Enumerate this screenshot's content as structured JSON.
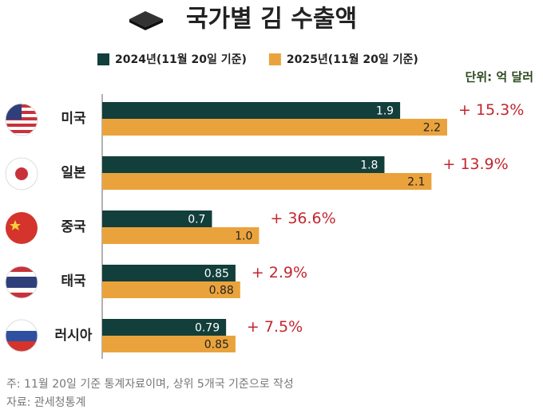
{
  "chart_data": {
    "type": "bar",
    "orientation": "horizontal",
    "title": "국가별 김 수출액",
    "unit_label": "단위: 억 달러",
    "categories": [
      "미국",
      "일본",
      "중국",
      "태국",
      "러시아"
    ],
    "series": [
      {
        "name": "2024년(11월 20일 기준)",
        "color": "#123f3b",
        "values": [
          1.9,
          1.8,
          0.7,
          0.85,
          0.79
        ],
        "value_labels": [
          "1.9",
          "1.8",
          "0.7",
          "0.85",
          "0.79"
        ]
      },
      {
        "name": "2025년(11월 20일 기준)",
        "color": "#eaa33c",
        "values": [
          2.2,
          2.1,
          1.0,
          0.88,
          0.85
        ],
        "value_labels": [
          "2.2",
          "2.1",
          "1.0",
          "0.88",
          "0.85"
        ]
      }
    ],
    "annotations": [
      "+ 15.3%",
      "+ 13.9%",
      "+ 36.6%",
      "+ 2.9%",
      "+ 7.5%"
    ],
    "notes": [
      "주: 11월 20일 기준 통계자료이며, 상위 5개국 기준으로 작성",
      "자료: 관세청통계"
    ]
  }
}
